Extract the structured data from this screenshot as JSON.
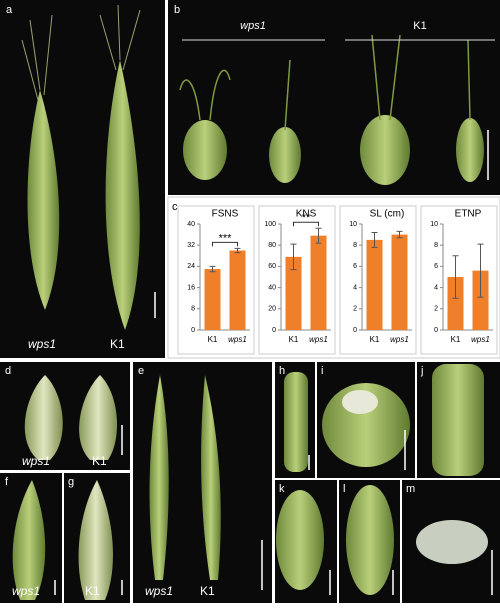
{
  "panels": [
    {
      "label": "a",
      "texts": [
        "wps1",
        "K1"
      ]
    },
    {
      "label": "b",
      "texts": [
        "wps1",
        "K1"
      ]
    },
    {
      "label": "c",
      "texts": []
    },
    {
      "label": "d",
      "texts": [
        "wps1",
        "K1"
      ]
    },
    {
      "label": "e",
      "texts": [
        "wps1",
        "K1"
      ]
    },
    {
      "label": "f",
      "texts": [
        "wps1"
      ]
    },
    {
      "label": "g",
      "texts": [
        "K1"
      ]
    },
    {
      "label": "h",
      "texts": []
    },
    {
      "label": "i",
      "texts": []
    },
    {
      "label": "j",
      "texts": []
    },
    {
      "label": "k",
      "texts": []
    },
    {
      "label": "l",
      "texts": []
    },
    {
      "label": "m",
      "texts": []
    }
  ],
  "chart_data": [
    {
      "type": "bar",
      "title": "FSNS",
      "categories": [
        "K1",
        "wps1"
      ],
      "values": [
        23,
        30
      ],
      "errors": [
        1,
        0.8
      ],
      "color": "#f07f2a",
      "ylim": [
        0,
        40
      ],
      "yticks": [
        0,
        8,
        16,
        24,
        32,
        40
      ],
      "significance": "***"
    },
    {
      "type": "bar",
      "title": "KNS",
      "categories": [
        "K1",
        "wps1"
      ],
      "values": [
        69,
        89
      ],
      "errors": [
        12,
        7
      ],
      "color": "#f07f2a",
      "ylim": [
        0,
        100
      ],
      "yticks": [
        0,
        20,
        40,
        60,
        80,
        100
      ],
      "significance": "**"
    },
    {
      "type": "bar",
      "title": "SL (cm)",
      "categories": [
        "K1",
        "wps1"
      ],
      "values": [
        8.5,
        9.0
      ],
      "errors": [
        0.7,
        0.3
      ],
      "color": "#f07f2a",
      "ylim": [
        0,
        10
      ],
      "yticks": [
        0,
        2,
        4,
        6,
        8,
        10
      ]
    },
    {
      "type": "bar",
      "title": "ETNP",
      "categories": [
        "K1",
        "wps1"
      ],
      "values": [
        5.0,
        5.6
      ],
      "errors": [
        2.0,
        2.5
      ],
      "color": "#f07f2a",
      "ylim": [
        0,
        10
      ],
      "yticks": [
        0,
        2,
        4,
        6,
        8,
        10
      ]
    }
  ]
}
